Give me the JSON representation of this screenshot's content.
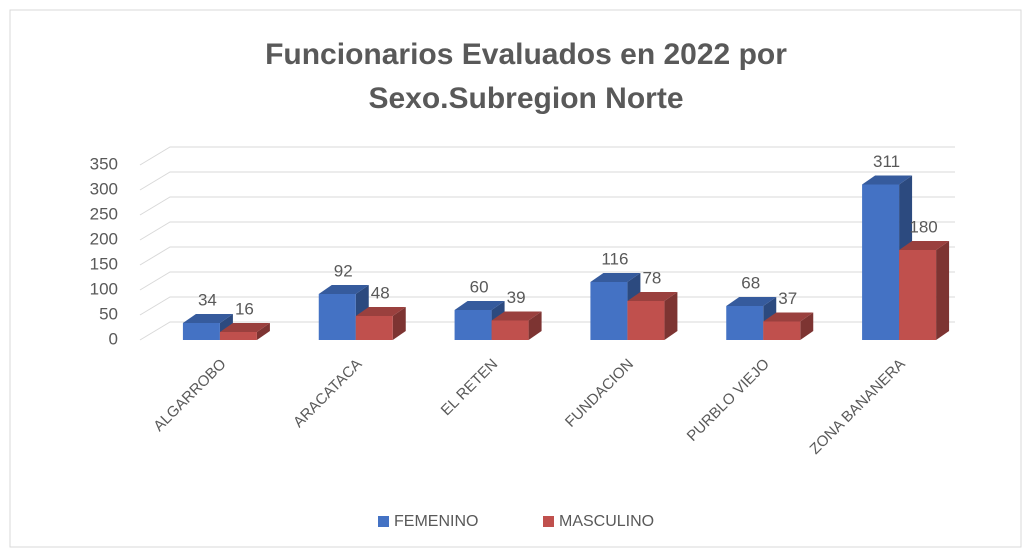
{
  "chart_data": {
    "type": "bar3d",
    "title": [
      "Funcionarios Evaluados en 2022 por",
      "Sexo.Subregion Norte"
    ],
    "categories": [
      "ALGARROBO",
      "ARACATACA",
      "EL RETEN",
      "FUNDACION",
      "PURBLO VIEJO",
      "ZONA BANANERA"
    ],
    "series": [
      {
        "name": "FEMENINO",
        "color": "#4472c4",
        "values": [
          34,
          92,
          60,
          116,
          68,
          311
        ]
      },
      {
        "name": "MASCULINO",
        "color": "#c0504d",
        "values": [
          16,
          48,
          39,
          78,
          37,
          180
        ]
      }
    ],
    "ylim": [
      0,
      350
    ],
    "yticks": [
      0,
      50,
      100,
      150,
      200,
      250,
      300,
      350
    ],
    "grid": true,
    "legend": "bottom"
  }
}
